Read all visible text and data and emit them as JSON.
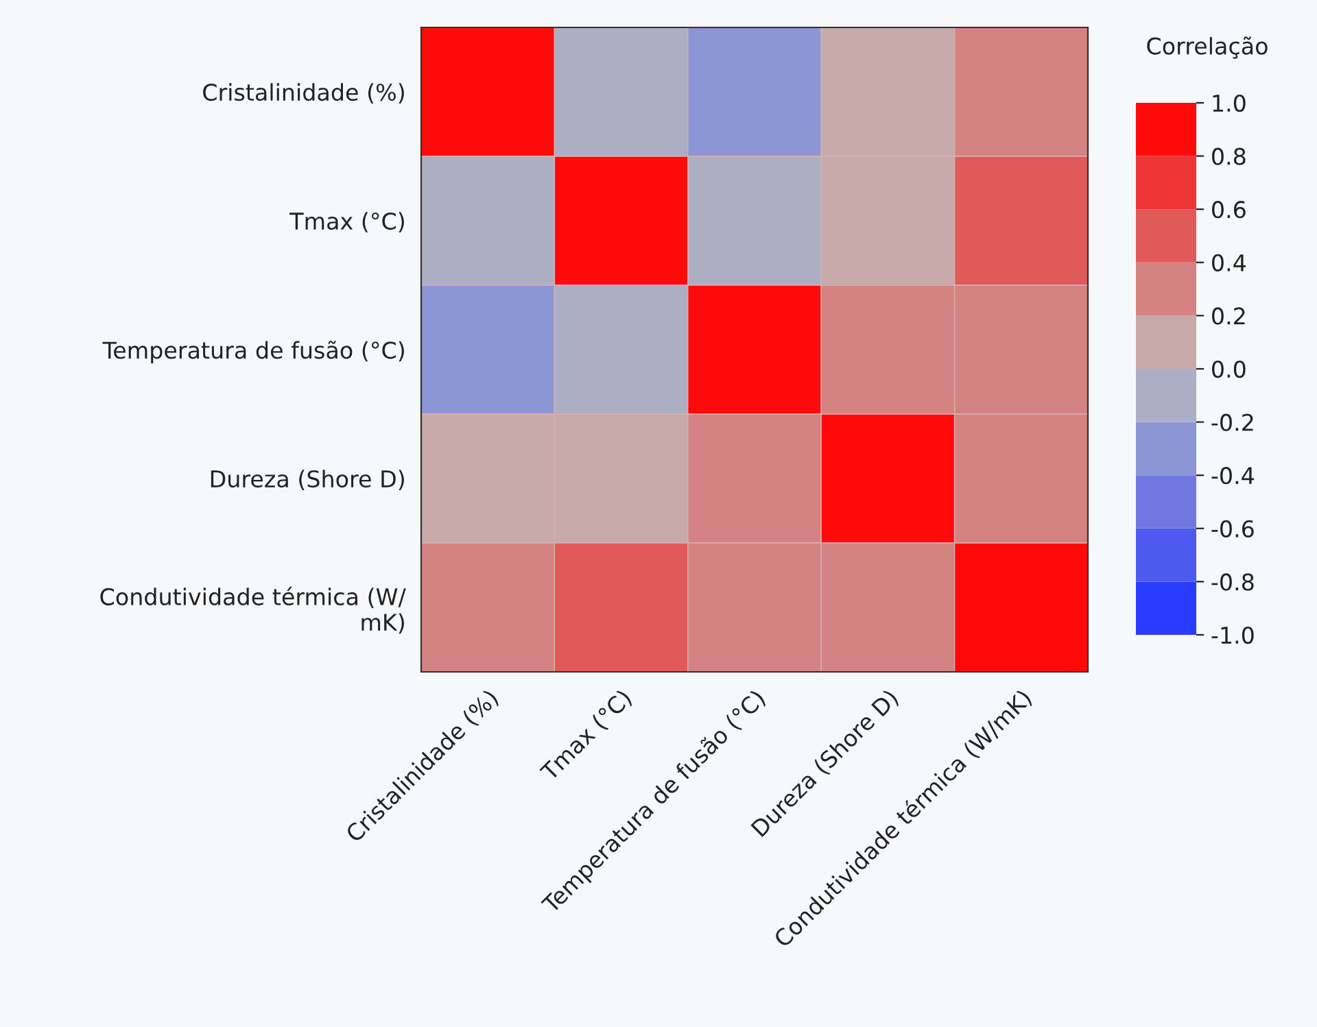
{
  "chart_data": {
    "type": "heatmap",
    "clabel": "Correlação",
    "categories": [
      "Cristalinidade (%)",
      "Tmax (°C)",
      "Temperatura de fusão (°C)",
      "Dureza (Shore D)",
      "Condutividade térmica (W/mK)"
    ],
    "y_categories": [
      "Cristalinidade (%)",
      "Tmax (°C)",
      "Temperatura de fusão (°C)",
      "Dureza (Shore D)",
      "Condutividade térmica (W/\nmK)"
    ],
    "cells": [
      [
        1.0,
        -0.1,
        -0.3,
        0.1,
        0.3
      ],
      [
        -0.1,
        1.0,
        -0.1,
        0.1,
        0.5
      ],
      [
        -0.3,
        -0.1,
        1.0,
        0.3,
        0.3
      ],
      [
        0.1,
        0.1,
        0.3,
        1.0,
        0.3
      ],
      [
        0.3,
        0.5,
        0.3,
        0.3,
        1.0
      ]
    ],
    "clim": [
      -1.0,
      1.0
    ],
    "cticks": [
      {
        "value": 1.0,
        "label": "1.0"
      },
      {
        "value": 0.8,
        "label": "0.8"
      },
      {
        "value": 0.6,
        "label": "0.6"
      },
      {
        "value": 0.4,
        "label": "0.4"
      },
      {
        "value": 0.2,
        "label": "0.2"
      },
      {
        "value": 0.0,
        "label": "0.0"
      },
      {
        "value": -0.2,
        "label": "-0.2"
      },
      {
        "value": -0.4,
        "label": "-0.4"
      },
      {
        "value": -0.6,
        "label": "-0.6"
      },
      {
        "value": -0.8,
        "label": "-0.8"
      },
      {
        "value": -1.0,
        "label": "-1.0"
      }
    ]
  }
}
